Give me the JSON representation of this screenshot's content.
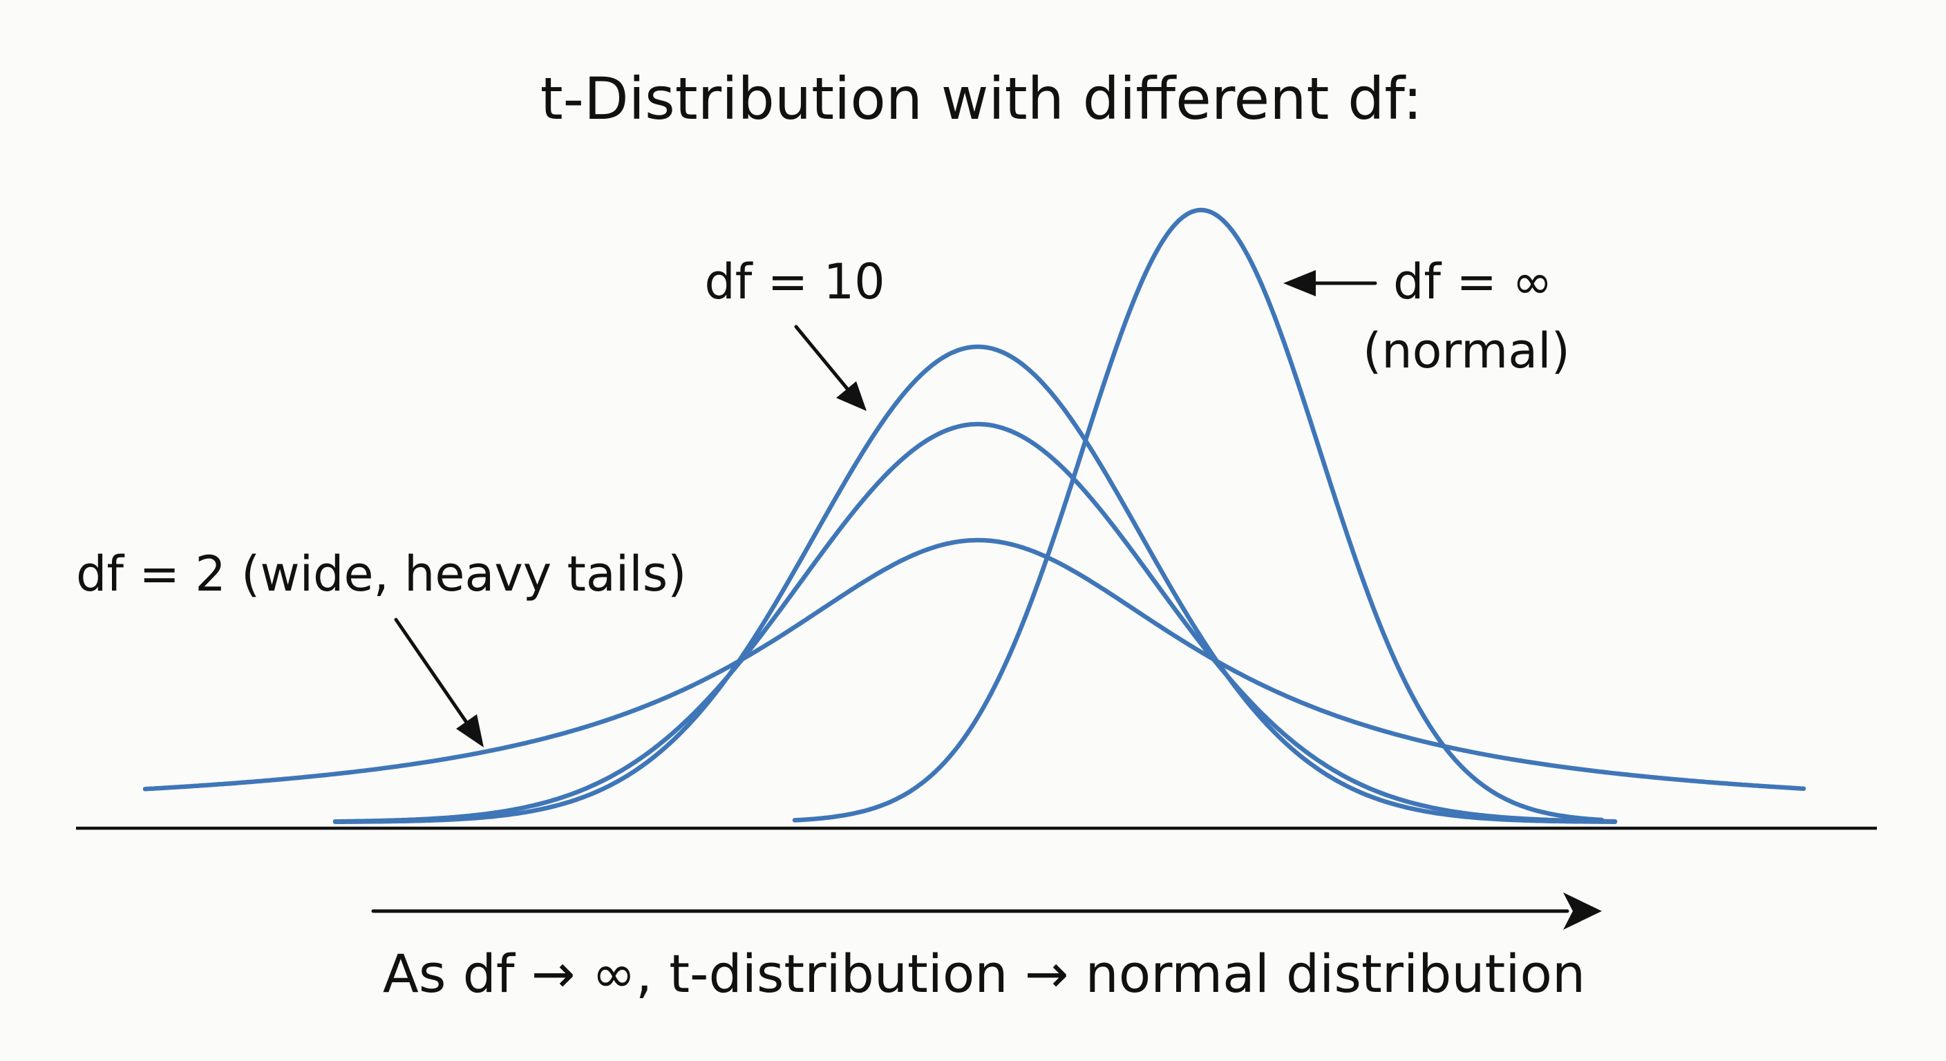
{
  "title": "t-Distribution with different df:",
  "labels": {
    "df10": "df = 10",
    "dfinf_line1": "df = ∞",
    "dfinf_line2": "(normal)",
    "df2": "df = 2 (wide, heavy tails)"
  },
  "caption": "As df → ∞, t-distribution → normal distribution",
  "colors": {
    "curve": "#3f76b8",
    "ink": "#111111",
    "background": "#fbfbf9"
  },
  "icons": {
    "bottom_arrow": "arrow-right-icon",
    "label_arrows": "arrow-pointer-icon"
  }
}
